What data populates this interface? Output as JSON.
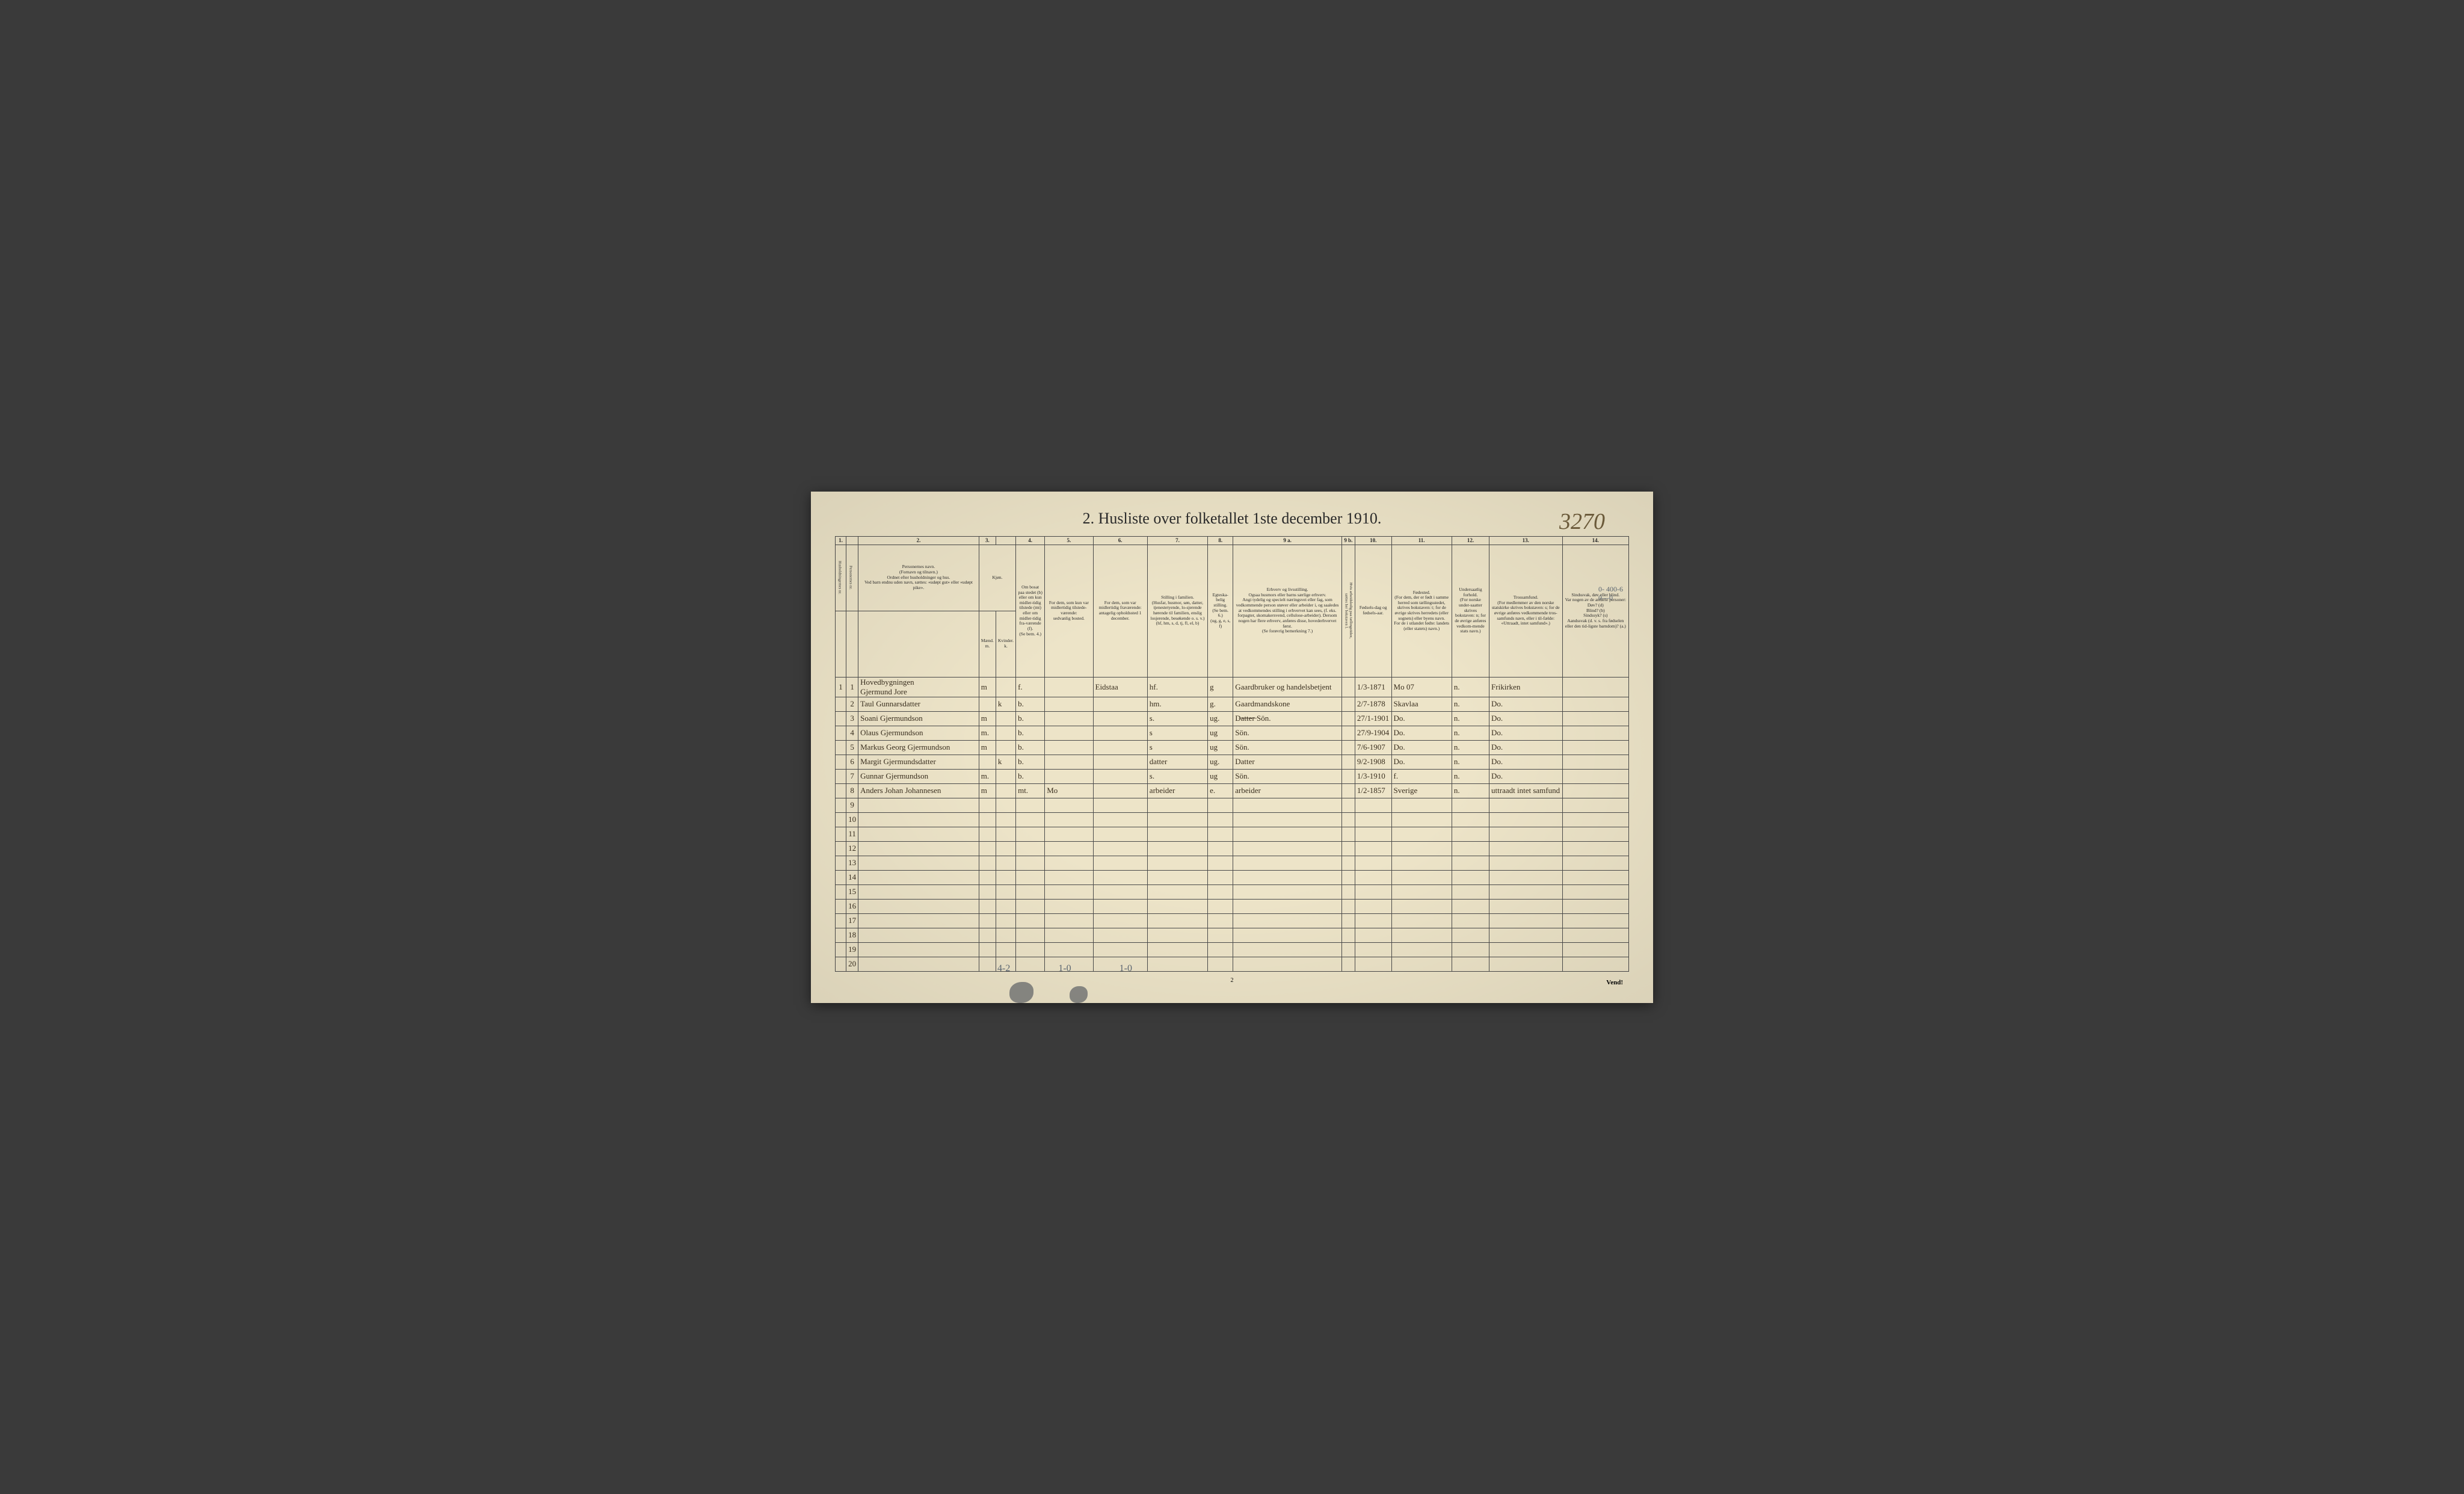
{
  "corner_number": "3270",
  "title": "2.  Husliste over folketallet 1ste december 1910.",
  "column_numbers": [
    "1.",
    "",
    "2.",
    "3.",
    "",
    "4.",
    "5.",
    "6.",
    "7.",
    "8.",
    "9 a.",
    "9 b.",
    "10.",
    "11.",
    "12.",
    "13.",
    "14."
  ],
  "headers": {
    "c1": "Husholdningernes nr.",
    "c1b": "Personernes nr.",
    "c2": "Personernes navn.\n(Fornavn og tilnavn.)\nOrdnet efter husholdninger og hus.\nVed barn endnu uden navn, sættes: «udøpt gut» eller «udøpt pike».",
    "c3a": "Kjøn.",
    "c3m": "Mænd.\nm.",
    "c3k": "Kvinder.\nk.",
    "c4": "Om bosat paa stedet (b) eller om kun midler-tidig tilstede (mt) eller om midler-tidig fra-værende (f).\n(Se bem. 4.)",
    "c5": "For dem, som kun var midlertidig tilstede-værende:\nsedvanlig bosted.",
    "c6": "For dem, som var midlertidig fraværende:\nantagelig opholdssted 1 december.",
    "c7": "Stilling i familien.\n(Husfar, husmor, søn, datter, tjenestetyende, lo-sjerende hørende til familien, enslig losjerende, besøkende o. s. v.)\n(hf, hm, s, d, tj, fl, el, b)",
    "c8": "Egteska-belig stilling.\n(Se bem. 6.)\n(ug, g, e, s, f)",
    "c9a": "Erhverv og livsstilling.\nOgsaa husmors eller barns særlige erhverv.\nAngi tydelig og specielt næringsvei eller fag, som vedkommende person utøver eller arbeider i, og saaledes at vedkommendes stilling i erhvervet kan sees, (f. eks. forpagter, skomakersvend, cellulose-arbeider). Dersom nogen har flere erhverv, anføres disse, hovederhvervet først.\n(Se forøvrig bemerkning 7.)",
    "c9b": "Hvis arbeidsledig paa tællingstiden, sættes her bokstaven l.",
    "c10": "Fødsels-dag og fødsels-aar.",
    "c11": "Fødested.\n(For dem, der er født i samme herred som tællingsstedet, skrives bokstaven: t; for de øvrige skrives herredets (eller sognets) eller byens navn.\nFor de i utlandet fødte: landets (eller statets) navn.)",
    "c12": "Undersaatlig forhold.\n(For norske under-saatter skrives bokstaven: n; for de øvrige anføres vedkom-mende stats navn.)",
    "c13": "Trossamfund.\n(For medlemmer av den norske statskirke skrives bokstaven: s; for de øvrige anføres vedkommende tros-samfunds navn, eller i til-fælde: «Uttraadt, intet samfund».)",
    "c14": "Sindssvak, døv eller blind.\nVar nogen av de anførte personer:\nDøv?        (d)\nBlind?       (b)\nSindssyk?  (s)\nAandssvak (d. v. s. fra fødselen eller den tid-ligste barndom)?  (a.)"
  },
  "rows": [
    {
      "hnum": "1",
      "pnum": "1",
      "name": "Hovedbygningen\nGjermund Jore",
      "m": "m",
      "k": "",
      "bmt": "f.",
      "c5": "",
      "c6": "Eidstaa",
      "c7": "hf.",
      "c8": "g",
      "c9a": "Gaardbruker og handelsbetjent",
      "c9b": "",
      "c10": "1/3-1871",
      "c11": "Mo  07",
      "c12": "n.",
      "c13": "Frikirken",
      "c14": ""
    },
    {
      "hnum": "",
      "pnum": "2",
      "name": "Taul Gunnarsdatter",
      "m": "",
      "k": "k",
      "bmt": "b.",
      "c5": "",
      "c6": "",
      "c7": "hm.",
      "c8": "g.",
      "c9a": "Gaardmandskone",
      "c9b": "",
      "c10": "2/7-1878",
      "c11": "Skavlaa",
      "c12": "n.",
      "c13": "Do.",
      "c14": ""
    },
    {
      "hnum": "",
      "pnum": "3",
      "name": "Soani Gjermundson",
      "m": "m",
      "k": "",
      "bmt": "b.",
      "c5": "",
      "c6": "",
      "c7": "s.",
      "c8": "ug.",
      "c9a": "D̶a̶t̶t̶e̶r̶  Sön.",
      "c9b": "",
      "c10": "27/1-1901",
      "c11": "Do.",
      "c12": "n.",
      "c13": "Do.",
      "c14": ""
    },
    {
      "hnum": "",
      "pnum": "4",
      "name": "Olaus Gjermundson",
      "m": "m.",
      "k": "",
      "bmt": "b.",
      "c5": "",
      "c6": "",
      "c7": "s",
      "c8": "ug",
      "c9a": "Sön.",
      "c9b": "",
      "c10": "27/9-1904",
      "c11": "Do.",
      "c12": "n.",
      "c13": "Do.",
      "c14": ""
    },
    {
      "hnum": "",
      "pnum": "5",
      "name": "Markus Georg Gjermundson",
      "m": "m",
      "k": "",
      "bmt": "b.",
      "c5": "",
      "c6": "",
      "c7": "s",
      "c8": "ug",
      "c9a": "Sön.",
      "c9b": "",
      "c10": "7/6-1907",
      "c11": "Do.",
      "c12": "n.",
      "c13": "Do.",
      "c14": ""
    },
    {
      "hnum": "",
      "pnum": "6",
      "name": "Margit Gjermundsdatter",
      "m": "",
      "k": "k",
      "bmt": "b.",
      "c5": "",
      "c6": "",
      "c7": "datter",
      "c8": "ug.",
      "c9a": "Datter",
      "c9b": "",
      "c10": "9/2-1908",
      "c11": "Do.",
      "c12": "n.",
      "c13": "Do.",
      "c14": ""
    },
    {
      "hnum": "",
      "pnum": "7",
      "name": "Gunnar Gjermundson",
      "m": "m.",
      "k": "",
      "bmt": "b.",
      "c5": "",
      "c6": "",
      "c7": "s.",
      "c8": "ug",
      "c9a": "Sön.",
      "c9b": "",
      "c10": "1/3-1910",
      "c11": "f.",
      "c12": "n.",
      "c13": "Do.",
      "c14": ""
    },
    {
      "hnum": "",
      "pnum": "8",
      "name": "Anders Johan Johannesen",
      "m": "m",
      "k": "",
      "bmt": "mt.",
      "c5": "Mo",
      "c6": "",
      "c7": "arbeider",
      "c8": "e.",
      "c9a": "arbeider",
      "c9b": "",
      "c10": "1/2-1857",
      "c11": "Sverige",
      "c12": "n.",
      "c13": "uttraadt intet samfund",
      "c14": ""
    }
  ],
  "empty_rows": [
    9,
    10,
    11,
    12,
    13,
    14,
    15,
    16,
    17,
    18,
    19,
    20
  ],
  "footer_notes": [
    "4-2",
    "1-0",
    "1-0"
  ],
  "small_annotation": "0- 400-6\n0—0",
  "page_number": "2",
  "vend": "Vend!",
  "col_widths": [
    "18px",
    "18px",
    "200px",
    "14px",
    "14px",
    "48px",
    "80px",
    "90px",
    "100px",
    "42px",
    "180px",
    "18px",
    "54px",
    "100px",
    "62px",
    "90px",
    "110px"
  ]
}
